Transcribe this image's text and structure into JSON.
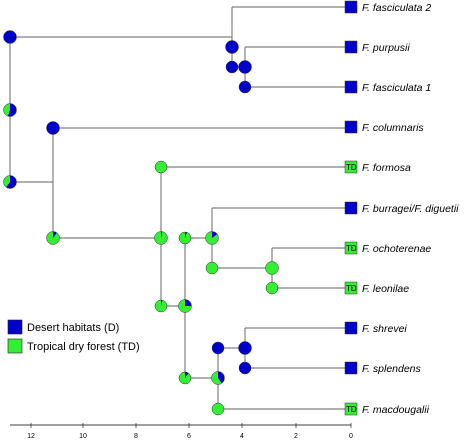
{
  "colors": {
    "desert": "#0000cc",
    "tropical": "#33ee33",
    "branch": "#808080"
  },
  "legend": [
    {
      "code": "D",
      "label": "Desert habitats (D)",
      "color": "#0000cc"
    },
    {
      "code": "TD",
      "label": "Tropical dry forest (TD)",
      "color": "#33ee33"
    }
  ],
  "axis": {
    "ticks": [
      "12",
      "10",
      "8",
      "6",
      "4",
      "2",
      "0"
    ]
  },
  "taxa": [
    {
      "name": "F. fasciculata 2",
      "habitat": "D"
    },
    {
      "name": "F. purpusii",
      "habitat": "D"
    },
    {
      "name": "F. fasciculata 1",
      "habitat": "D"
    },
    {
      "name": "F. columnaris",
      "habitat": "D"
    },
    {
      "name": "F. formosa",
      "habitat": "TD"
    },
    {
      "name": "F. burragei/F. diguetii",
      "habitat": "D"
    },
    {
      "name": "F. ochoterenae",
      "habitat": "TD"
    },
    {
      "name": "F. leonilae",
      "habitat": "TD"
    },
    {
      "name": "F. shrevei",
      "habitat": "D"
    },
    {
      "name": "F. splendens",
      "habitat": "D"
    },
    {
      "name": "F. macdougalii",
      "habitat": "TD"
    }
  ],
  "nodes": [
    {
      "id": "root",
      "desert": 0.55
    },
    {
      "id": "n-desert-clade",
      "desert": 1.0
    },
    {
      "id": "n-columnaris-split",
      "desert": 0.6
    },
    {
      "id": "n-columnaris-stem",
      "desert": 1.0
    },
    {
      "id": "n-tropical-split",
      "desert": 0.1
    },
    {
      "id": "n-fasciculata-group",
      "desert": 1.0
    },
    {
      "id": "n-purpusii-pair",
      "desert": 1.0
    },
    {
      "id": "n-formosa-split",
      "desert": 0.03
    },
    {
      "id": "n-burragei-split",
      "desert": 0.15
    },
    {
      "id": "n-ochoterenae-pair",
      "desert": 0.0
    },
    {
      "id": "n-shrevei-clade",
      "desert": 0.25
    },
    {
      "id": "n-macdougalii-split",
      "desert": 0.4
    },
    {
      "id": "n-shrevei-pair",
      "desert": 1.0
    }
  ]
}
